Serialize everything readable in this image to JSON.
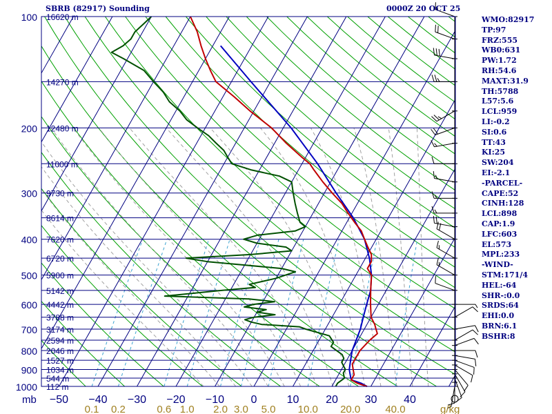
{
  "title_left": "SBRB (82917) Sounding",
  "title_right": "0000Z 20 OCT 25",
  "indices": [
    "WMO:82917",
    "TP:97",
    "FRZ:555",
    "WB0:631",
    "PW:1.72",
    "RH:54.6",
    "MAXT:31.9",
    "TH:5788",
    "L57:5.6",
    "LCL:959",
    "LI:-0.2",
    "SI:0.6",
    "TT:43",
    "KI:25",
    "SW:204",
    "EI:-2.1",
    "-PARCEL-",
    "CAPE:52",
    "CINH:128",
    "LCL:898",
    "CAP:1.9",
    "LFC:603",
    "EL:573",
    "MPL:233",
    "-WIND-",
    "STM:171/4",
    "HEL:-64",
    "SHR-:0.0",
    "SRDS:64",
    "EHI:0.0",
    "BRN:6.1",
    "BSHR:8"
  ],
  "colors": {
    "frame": "#000080",
    "isobar": "#000080",
    "isotherm": "#000080",
    "dry_adiabat": "#00a000",
    "moist_adiabat": "#a0a0a0",
    "mixing_ratio": "#3ba3d0",
    "temperature": "#c00000",
    "dewpoint": "#005000",
    "parcel": "#0000c0",
    "wind": "#000000"
  },
  "chart_data": {
    "type": "skew-t",
    "title": "SBRB (82917) Sounding",
    "valid": "0000Z 20 OCT 25",
    "pressure_unit": "mb",
    "mixing_ratio_unit": "g/kg",
    "pressure_range": [
      1000,
      100
    ],
    "temperature_range": [
      -50,
      50
    ],
    "isobars": [
      {
        "p": 100,
        "label": "100",
        "height": "16620 m"
      },
      {
        "p": 150,
        "label": "",
        "height": "14270 m"
      },
      {
        "p": 200,
        "label": "200",
        "height": "12480 m"
      },
      {
        "p": 250,
        "label": "",
        "height": "11000 m"
      },
      {
        "p": 300,
        "label": "300",
        "height": "9730 m"
      },
      {
        "p": 350,
        "label": "",
        "height": "8614 m"
      },
      {
        "p": 400,
        "label": "400",
        "height": "7620 m"
      },
      {
        "p": 450,
        "label": "",
        "height": "6720 m"
      },
      {
        "p": 500,
        "label": "500",
        "height": "5900 m"
      },
      {
        "p": 550,
        "label": "",
        "height": "5142 m"
      },
      {
        "p": 600,
        "label": "600",
        "height": "4442 m"
      },
      {
        "p": 650,
        "label": "",
        "height": "3788 m"
      },
      {
        "p": 700,
        "label": "700",
        "height": "3174 m"
      },
      {
        "p": 750,
        "label": "",
        "height": "2594 m"
      },
      {
        "p": 800,
        "label": "800",
        "height": "2046 m"
      },
      {
        "p": 850,
        "label": "",
        "height": "1527 m"
      },
      {
        "p": 900,
        "label": "900",
        "height": "1034 m"
      },
      {
        "p": 950,
        "label": "",
        "height": "544 m"
      },
      {
        "p": 1000,
        "label": "1000",
        "height": "112 m"
      }
    ],
    "temperature_ticks": [
      "−50",
      "−40",
      "−30",
      "−20",
      "−10",
      "0",
      "10",
      "20",
      "30",
      "40"
    ],
    "temperature_tick_values": [
      -50,
      -40,
      -30,
      -20,
      -10,
      0,
      10,
      20,
      30,
      40
    ],
    "mixing_ratio_ticks": [
      "0.1",
      "0.2",
      "0.6",
      "1.0",
      "2.0",
      "3.0",
      "5.0",
      "10.0",
      "20.0",
      "40.0"
    ],
    "mixing_ratio_values": [
      0.1,
      0.2,
      0.6,
      1.0,
      2.0,
      3.0,
      5.0,
      10.0,
      20.0,
      40.0
    ],
    "temperature": [
      [
        1000,
        29
      ],
      [
        980,
        26
      ],
      [
        960,
        24
      ],
      [
        930,
        24
      ],
      [
        900,
        23
      ],
      [
        870,
        22
      ],
      [
        840,
        22
      ],
      [
        800,
        22
      ],
      [
        750,
        23
      ],
      [
        720,
        24
      ],
      [
        700,
        23
      ],
      [
        680,
        22
      ],
      [
        650,
        20
      ],
      [
        600,
        18
      ],
      [
        550,
        16
      ],
      [
        500,
        14
      ],
      [
        480,
        12
      ],
      [
        460,
        12
      ],
      [
        440,
        11
      ],
      [
        420,
        9
      ],
      [
        400,
        7
      ],
      [
        380,
        5
      ],
      [
        360,
        2
      ],
      [
        340,
        -1
      ],
      [
        320,
        -4
      ],
      [
        300,
        -8
      ],
      [
        280,
        -12
      ],
      [
        260,
        -16
      ],
      [
        250,
        -18
      ],
      [
        240,
        -21
      ],
      [
        220,
        -27
      ],
      [
        200,
        -33
      ],
      [
        180,
        -41
      ],
      [
        165,
        -47
      ],
      [
        150,
        -54
      ],
      [
        140,
        -57
      ],
      [
        130,
        -60
      ],
      [
        120,
        -63
      ],
      [
        110,
        -66
      ],
      [
        100,
        -70
      ]
    ],
    "dewpoint": [
      [
        1000,
        21
      ],
      [
        980,
        21
      ],
      [
        950,
        22
      ],
      [
        920,
        21
      ],
      [
        900,
        21
      ],
      [
        880,
        20
      ],
      [
        860,
        19
      ],
      [
        840,
        19
      ],
      [
        820,
        18
      ],
      [
        800,
        16
      ],
      [
        780,
        14
      ],
      [
        760,
        14
      ],
      [
        730,
        12
      ],
      [
        700,
        5
      ],
      [
        690,
        3
      ],
      [
        680,
        -7
      ],
      [
        670,
        -10
      ],
      [
        660,
        -12
      ],
      [
        650,
        -10
      ],
      [
        640,
        -5
      ],
      [
        630,
        -10
      ],
      [
        620,
        -8
      ],
      [
        610,
        -14
      ],
      [
        600,
        -12
      ],
      [
        590,
        -7
      ],
      [
        580,
        -14
      ],
      [
        570,
        -36
      ],
      [
        550,
        -22
      ],
      [
        540,
        -14
      ],
      [
        530,
        -16
      ],
      [
        510,
        -10
      ],
      [
        500,
        -8
      ],
      [
        490,
        -6
      ],
      [
        480,
        -10
      ],
      [
        460,
        -30
      ],
      [
        450,
        -36
      ],
      [
        440,
        -20
      ],
      [
        430,
        -10
      ],
      [
        420,
        -12
      ],
      [
        410,
        -20
      ],
      [
        400,
        -24
      ],
      [
        390,
        -21
      ],
      [
        380,
        -12
      ],
      [
        370,
        -10
      ],
      [
        360,
        -12
      ],
      [
        340,
        -14
      ],
      [
        320,
        -16
      ],
      [
        300,
        -18
      ],
      [
        280,
        -20
      ],
      [
        270,
        -24
      ],
      [
        260,
        -32
      ],
      [
        250,
        -38
      ],
      [
        240,
        -40
      ],
      [
        230,
        -42
      ],
      [
        220,
        -45
      ],
      [
        210,
        -48
      ],
      [
        200,
        -52
      ],
      [
        190,
        -56
      ],
      [
        180,
        -59
      ],
      [
        170,
        -63
      ],
      [
        160,
        -66
      ],
      [
        150,
        -70
      ],
      [
        140,
        -74
      ],
      [
        130,
        -81
      ],
      [
        125,
        -85
      ],
      [
        120,
        -83
      ],
      [
        115,
        -82
      ],
      [
        110,
        -82
      ],
      [
        105,
        -81
      ],
      [
        100,
        -80
      ]
    ],
    "parcel": [
      [
        1000,
        29
      ],
      [
        980,
        27
      ],
      [
        960,
        24
      ],
      [
        930,
        23
      ],
      [
        900,
        22
      ],
      [
        850,
        21
      ],
      [
        800,
        20
      ],
      [
        700,
        19
      ],
      [
        650,
        18
      ],
      [
        600,
        17
      ],
      [
        550,
        16
      ],
      [
        500,
        14
      ],
      [
        450,
        11
      ],
      [
        400,
        7
      ],
      [
        350,
        1
      ],
      [
        300,
        -7
      ],
      [
        250,
        -16
      ],
      [
        200,
        -28
      ],
      [
        150,
        -45
      ],
      [
        120,
        -58
      ]
    ],
    "wind_barbs": [
      {
        "p": 1000,
        "dir": 190,
        "spd": 5
      },
      {
        "p": 975,
        "dir": 180,
        "spd": 10
      },
      {
        "p": 950,
        "dir": 160,
        "spd": 10
      },
      {
        "p": 925,
        "dir": 150,
        "spd": 10
      },
      {
        "p": 900,
        "dir": 140,
        "spd": 10
      },
      {
        "p": 875,
        "dir": 120,
        "spd": 10
      },
      {
        "p": 850,
        "dir": 110,
        "spd": 10
      },
      {
        "p": 825,
        "dir": 100,
        "spd": 10
      },
      {
        "p": 800,
        "dir": 90,
        "spd": 10
      },
      {
        "p": 775,
        "dir": 70,
        "spd": 10
      },
      {
        "p": 750,
        "dir": 60,
        "spd": 10
      },
      {
        "p": 700,
        "dir": 80,
        "spd": 10
      },
      {
        "p": 650,
        "dir": 60,
        "spd": 10
      },
      {
        "p": 600,
        "dir": 90,
        "spd": 5
      },
      {
        "p": 550,
        "dir": 290,
        "spd": 10
      },
      {
        "p": 500,
        "dir": 300,
        "spd": 15
      },
      {
        "p": 450,
        "dir": 300,
        "spd": 15
      },
      {
        "p": 400,
        "dir": 300,
        "spd": 20
      },
      {
        "p": 370,
        "dir": 280,
        "spd": 20
      },
      {
        "p": 340,
        "dir": 270,
        "spd": 15
      },
      {
        "p": 310,
        "dir": 270,
        "spd": 15
      },
      {
        "p": 280,
        "dir": 280,
        "spd": 15
      },
      {
        "p": 250,
        "dir": 270,
        "spd": 10
      },
      {
        "p": 220,
        "dir": 260,
        "spd": 15
      },
      {
        "p": 200,
        "dir": 250,
        "spd": 20
      },
      {
        "p": 180,
        "dir": 240,
        "spd": 25
      },
      {
        "p": 150,
        "dir": 270,
        "spd": 25
      },
      {
        "p": 130,
        "dir": 280,
        "spd": 30
      },
      {
        "p": 115,
        "dir": 290,
        "spd": 20
      },
      {
        "p": 100,
        "dir": 290,
        "spd": 15
      }
    ]
  }
}
